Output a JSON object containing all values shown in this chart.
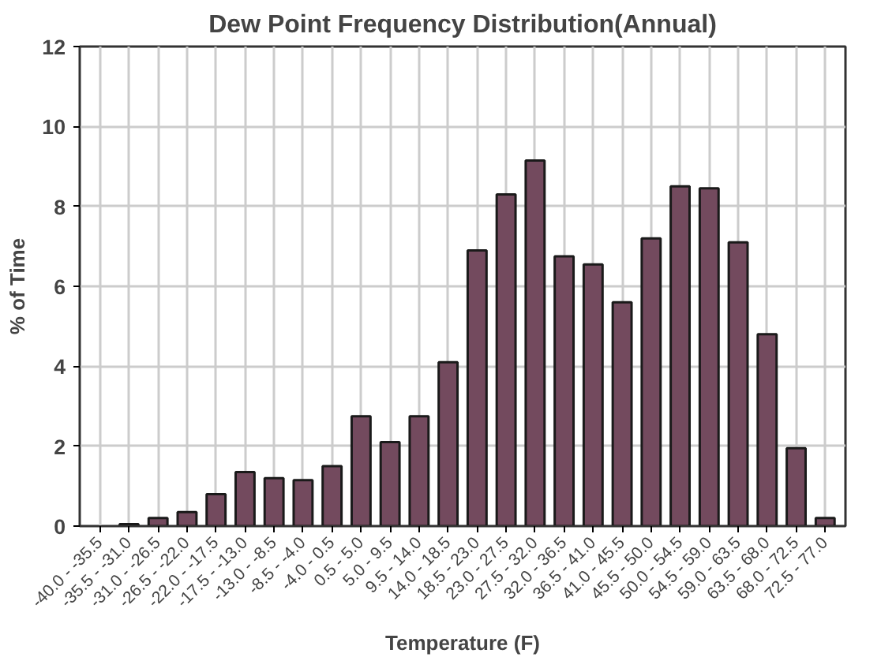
{
  "chart_data": {
    "type": "bar",
    "title": "Dew Point Frequency Distribution(Annual)",
    "xlabel": "Temperature (F)",
    "ylabel": "% of Time",
    "categories": [
      "-40.0 - -35.5",
      "-35.5 - -31.0",
      "-31.0 - -26.5",
      "-26.5 - -22.0",
      "-22.0 - -17.5",
      "-17.5 - -13.0",
      "-13.0 - -8.5",
      "-8.5 - -4.0",
      "-4.0 - 0.5",
      "0.5 - 5.0",
      "5.0 - 9.5",
      "9.5 - 14.0",
      "14.0 - 18.5",
      "18.5 - 23.0",
      "23.0 - 27.5",
      "27.5 - 32.0",
      "32.0 - 36.5",
      "36.5 - 41.0",
      "41.0 - 45.5",
      "45.5 - 50.0",
      "50.0 - 54.5",
      "54.5 - 59.0",
      "59.0 - 63.5",
      "63.5 - 68.0",
      "68.0 - 72.5",
      "72.5 - 77.0"
    ],
    "values": [
      0,
      0.05,
      0.2,
      0.35,
      0.8,
      1.35,
      1.2,
      1.15,
      1.5,
      2.75,
      2.1,
      2.75,
      4.1,
      6.9,
      8.3,
      9.15,
      6.75,
      6.55,
      5.6,
      7.2,
      8.5,
      8.45,
      7.1,
      4.8,
      1.95,
      0.2
    ],
    "color": "#734a5e",
    "ylim": [
      0,
      12
    ],
    "yticks": [
      0,
      2,
      4,
      6,
      8,
      10,
      12
    ],
    "grid": true
  }
}
